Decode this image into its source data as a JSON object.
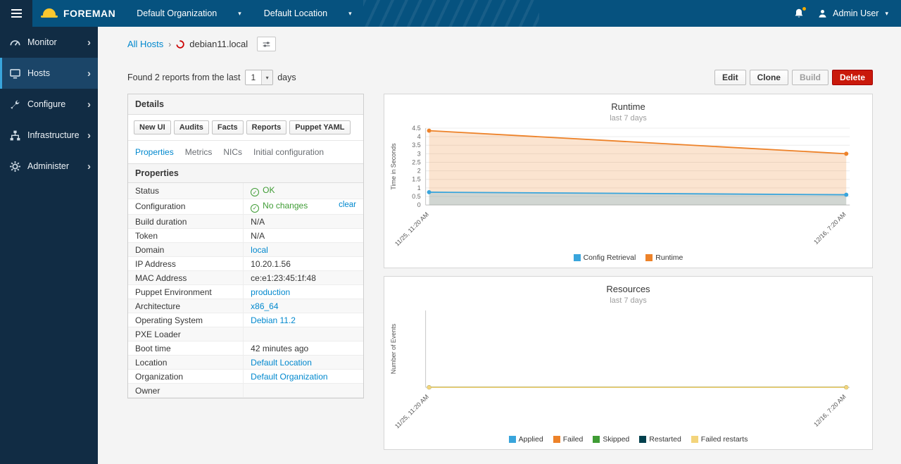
{
  "colors": {
    "accent": "#0088ce",
    "success": "#3f9c35",
    "danger": "#c9190b",
    "brand_yellow": "#fcc72e"
  },
  "topbar": {
    "brand": "FOREMAN",
    "org": "Default Organization",
    "location": "Default Location",
    "user": "Admin User"
  },
  "sidebar": {
    "items": [
      {
        "label": "Monitor",
        "icon": "gauge-icon",
        "active": false
      },
      {
        "label": "Hosts",
        "icon": "hosts-icon",
        "active": true
      },
      {
        "label": "Configure",
        "icon": "wrench-icon",
        "active": false
      },
      {
        "label": "Infrastructure",
        "icon": "infrastructure-icon",
        "active": false
      },
      {
        "label": "Administer",
        "icon": "gear-icon",
        "active": false
      }
    ]
  },
  "breadcrumb": {
    "parent": "All Hosts",
    "current": "debian11.local"
  },
  "reports_bar": {
    "prefix": "Found 2 reports from the last",
    "days_value": "1",
    "suffix": "days"
  },
  "actions": [
    {
      "label": "Edit"
    },
    {
      "label": "Clone"
    },
    {
      "label": "Build",
      "disabled": true
    },
    {
      "label": "Delete",
      "danger": true
    }
  ],
  "details": {
    "title": "Details",
    "buttons": [
      "New UI",
      "Audits",
      "Facts",
      "Reports",
      "Puppet YAML"
    ],
    "tabs": [
      "Properties",
      "Metrics",
      "NICs",
      "Initial configuration"
    ],
    "active_tab": "Properties",
    "section_title": "Properties",
    "rows": [
      {
        "label": "Status",
        "value": "OK",
        "status": true
      },
      {
        "label": "Configuration",
        "value": "No changes",
        "status": true,
        "extra": "clear"
      },
      {
        "label": "Build duration",
        "value": "N/A"
      },
      {
        "label": "Token",
        "value": "N/A"
      },
      {
        "label": "Domain",
        "value": "local",
        "link": true
      },
      {
        "label": "IP Address",
        "value": "10.20.1.56"
      },
      {
        "label": "MAC Address",
        "value": "ce:e1:23:45:1f:48"
      },
      {
        "label": "Puppet Environment",
        "value": "production",
        "link": true
      },
      {
        "label": "Architecture",
        "value": "x86_64",
        "link": true
      },
      {
        "label": "Operating System",
        "value": "Debian 11.2",
        "link": true
      },
      {
        "label": "PXE Loader",
        "value": ""
      },
      {
        "label": "Boot time",
        "value": "42 minutes ago"
      },
      {
        "label": "Location",
        "value": "Default Location",
        "link": true
      },
      {
        "label": "Organization",
        "value": "Default Organization",
        "link": true
      },
      {
        "label": "Owner",
        "value": ""
      }
    ]
  },
  "chart_data": [
    {
      "type": "area",
      "title": "Runtime",
      "subtitle": "last 7 days",
      "ylabel": "Time in Seconds",
      "x": [
        "11/25, 11:20 AM",
        "12/16, 7:20 AM"
      ],
      "ylim": [
        0,
        4.5
      ],
      "yticks": [
        0,
        0.5,
        1,
        1.5,
        2,
        2.5,
        3,
        3.5,
        4,
        4.5
      ],
      "grid": true,
      "legend_position": "bottom",
      "series": [
        {
          "name": "Runtime",
          "color": "#ed8229",
          "values": [
            4.35,
            3.0
          ]
        },
        {
          "name": "Config Retrieval",
          "color": "#39a5dc",
          "values": [
            0.75,
            0.6
          ]
        }
      ],
      "legend": [
        "Config Retrieval",
        "Runtime"
      ]
    },
    {
      "type": "area",
      "title": "Resources",
      "subtitle": "last 7 days",
      "ylabel": "Number of Events",
      "x": [
        "11/25, 11:20 AM",
        "12/16, 7:20 AM"
      ],
      "ylim": [
        0,
        1
      ],
      "yticks": [],
      "grid": false,
      "legend_position": "bottom",
      "series": [
        {
          "name": "Applied",
          "color": "#39a5dc",
          "values": [
            0,
            0
          ]
        },
        {
          "name": "Failed",
          "color": "#ed8229",
          "values": [
            0,
            0
          ]
        },
        {
          "name": "Skipped",
          "color": "#3f9c35",
          "values": [
            0,
            0
          ]
        },
        {
          "name": "Restarted",
          "color": "#00404d",
          "values": [
            0,
            0
          ]
        },
        {
          "name": "Failed restarts",
          "color": "#f3d47b",
          "values": [
            0,
            0
          ]
        }
      ],
      "legend": [
        "Applied",
        "Failed",
        "Skipped",
        "Restarted",
        "Failed restarts"
      ]
    }
  ]
}
